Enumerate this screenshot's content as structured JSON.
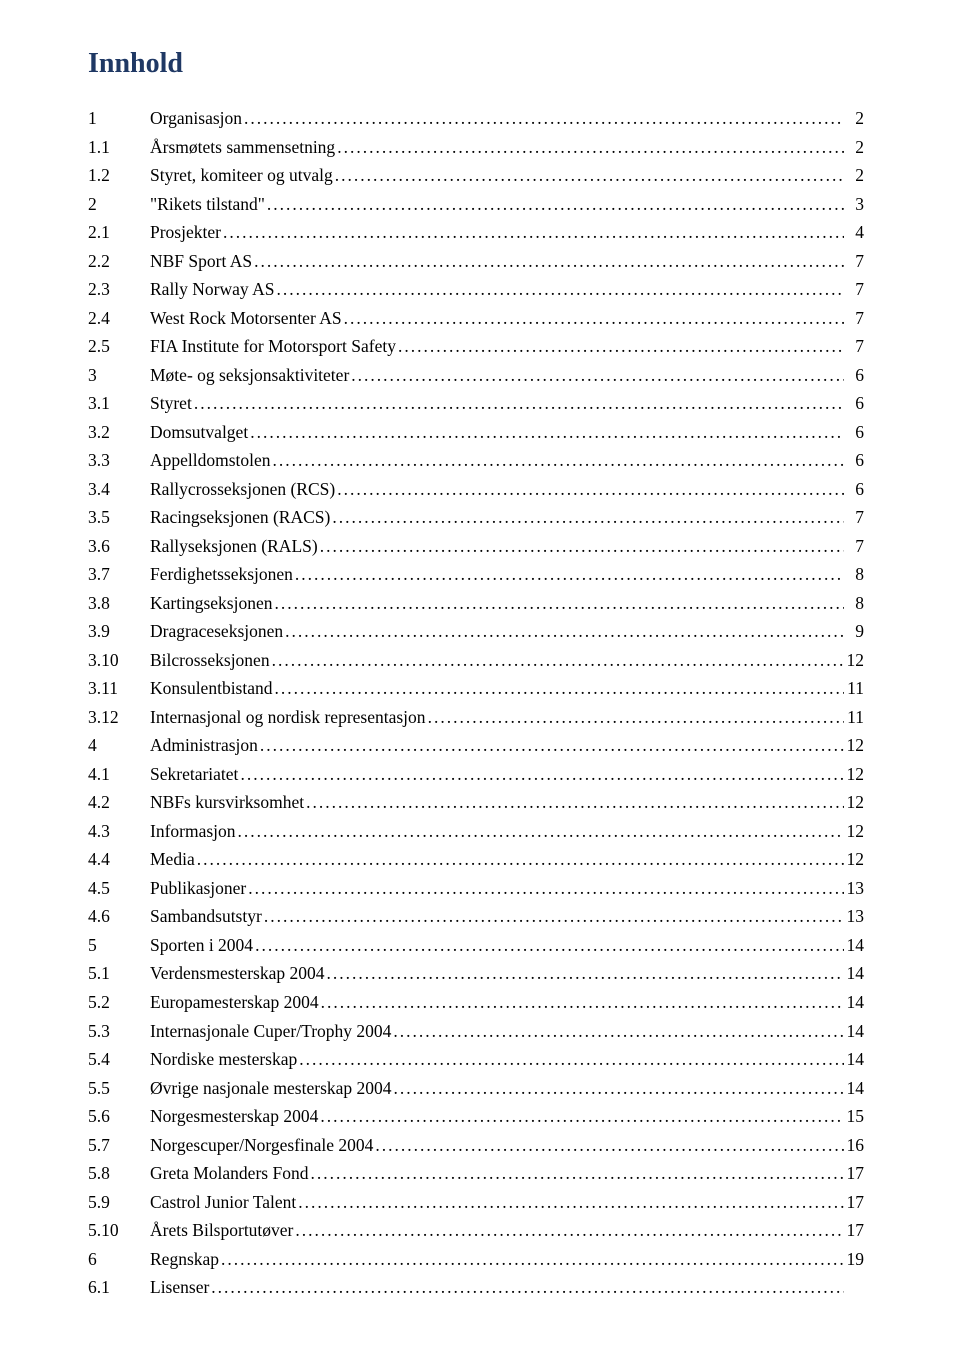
{
  "title": "Innhold",
  "colors": {
    "title_color": "#1f3864",
    "text_color": "#000000",
    "background": "#ffffff"
  },
  "typography": {
    "title_fontsize": 28,
    "row_fontsize": 17.5,
    "font_family": "Georgia, Times New Roman, serif"
  },
  "entries": [
    {
      "num": "1",
      "text": "Organisasjon",
      "page": "2"
    },
    {
      "num": "1.1",
      "text": "Årsmøtets sammensetning",
      "page": "2"
    },
    {
      "num": "1.2",
      "text": "Styret, komiteer og utvalg",
      "page": "2"
    },
    {
      "num": "2",
      "text": "\"Rikets tilstand\"",
      "page": "3"
    },
    {
      "num": "2.1",
      "text": "Prosjekter",
      "page": "4"
    },
    {
      "num": "2.2",
      "text": "NBF Sport AS",
      "page": "7"
    },
    {
      "num": "2.3",
      "text": "Rally Norway AS",
      "page": "7"
    },
    {
      "num": "2.4",
      "text": "West Rock Motorsenter AS",
      "page": "7"
    },
    {
      "num": "2.5",
      "text": "FIA Institute for Motorsport Safety",
      "page": "7"
    },
    {
      "num": "3",
      "text": "Møte- og seksjonsaktiviteter",
      "page": "6"
    },
    {
      "num": "3.1",
      "text": "Styret",
      "page": "6"
    },
    {
      "num": "3.2",
      "text": "Domsutvalget",
      "page": "6"
    },
    {
      "num": "3.3",
      "text": "Appelldomstolen",
      "page": "6"
    },
    {
      "num": "3.4",
      "text": "Rallycrosseksjonen (RCS)",
      "page": "6"
    },
    {
      "num": "3.5",
      "text": "Racingseksjonen (RACS)",
      "page": "7"
    },
    {
      "num": "3.6",
      "text": "Rallyseksjonen (RALS)",
      "page": "7"
    },
    {
      "num": "3.7",
      "text": "Ferdighetsseksjonen",
      "page": "8"
    },
    {
      "num": "3.8",
      "text": "Kartingseksjonen",
      "page": "8"
    },
    {
      "num": "3.9",
      "text": "Dragraceseksjonen",
      "page": "9"
    },
    {
      "num": "3.10",
      "text": "Bilcrosseksjonen",
      "page": "12"
    },
    {
      "num": "3.11",
      "text": "Konsulentbistand",
      "page": "11"
    },
    {
      "num": "3.12",
      "text": "Internasjonal og nordisk representasjon",
      "page": "11"
    },
    {
      "num": "4",
      "text": "Administrasjon",
      "page": "12"
    },
    {
      "num": "4.1",
      "text": "Sekretariatet",
      "page": "12"
    },
    {
      "num": "4.2",
      "text": "NBFs kursvirksomhet",
      "page": "12"
    },
    {
      "num": "4.3",
      "text": "Informasjon",
      "page": "12"
    },
    {
      "num": "4.4",
      "text": "Media",
      "page": "12"
    },
    {
      "num": "4.5",
      "text": "Publikasjoner",
      "page": "13"
    },
    {
      "num": "4.6",
      "text": "Sambandsutstyr",
      "page": "13"
    },
    {
      "num": "5",
      "text": "Sporten i 2004",
      "page": "14"
    },
    {
      "num": "5.1",
      "text": "Verdensmesterskap 2004",
      "page": "14"
    },
    {
      "num": "5.2",
      "text": "Europamesterskap 2004",
      "page": "14"
    },
    {
      "num": "5.3",
      "text": "Internasjonale Cuper/Trophy 2004",
      "page": "14"
    },
    {
      "num": "5.4",
      "text": "Nordiske mesterskap",
      "page": "14"
    },
    {
      "num": "5.5",
      "text": "Øvrige nasjonale mesterskap 2004",
      "page": "14"
    },
    {
      "num": "5.6",
      "text": "Norgesmesterskap 2004",
      "page": "15"
    },
    {
      "num": "5.7",
      "text": "Norgescuper/Norgesfinale 2004",
      "page": "16"
    },
    {
      "num": "5.8",
      "text": "Greta Molanders Fond",
      "page": "17"
    },
    {
      "num": "5.9",
      "text": "Castrol Junior Talent",
      "page": "17"
    },
    {
      "num": "5.10",
      "text": "Årets Bilsportutøver",
      "page": "17"
    },
    {
      "num": "6",
      "text": "Regnskap",
      "page": "19"
    },
    {
      "num": "6.1",
      "text": "Lisenser",
      "page": ""
    }
  ]
}
